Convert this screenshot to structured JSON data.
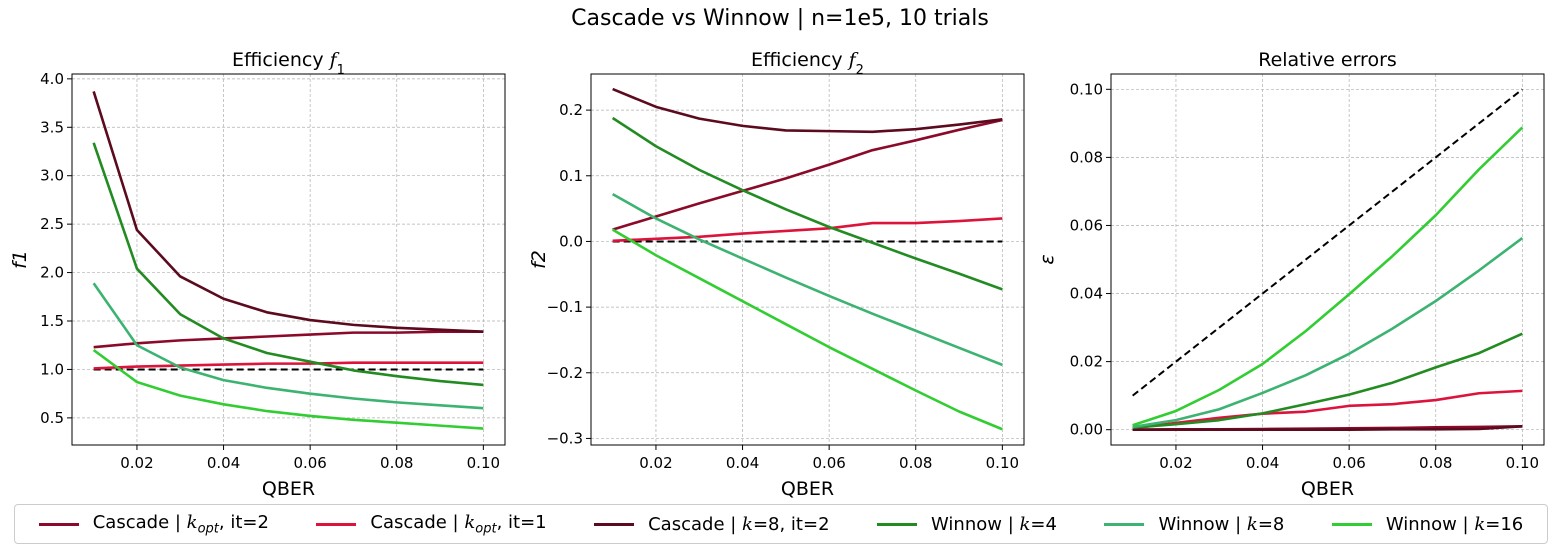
{
  "figure": {
    "title": "Cascade vs Winnow | n=1e5, 10 trials"
  },
  "colors": {
    "cascade_kopt_it2": "#8b0a2a",
    "cascade_kopt_it1": "#dc143c",
    "cascade_k8_it2": "#5c0a1e",
    "winnow_k4": "#228b22",
    "winnow_k8": "#3cb371",
    "winnow_k16": "#32cd32",
    "reference": "#000000",
    "grid": "#b0b0b0"
  },
  "legend": [
    {
      "key": "cascade_kopt_it2",
      "prefix": "Cascade | ",
      "k": "k",
      "sub": "opt",
      "suffix": ", it=2"
    },
    {
      "key": "cascade_kopt_it1",
      "prefix": "Cascade | ",
      "k": "k",
      "sub": "opt",
      "suffix": ", it=1"
    },
    {
      "key": "cascade_k8_it2",
      "prefix": "Cascade | ",
      "k": "k",
      "sub": "",
      "suffix": "=8, it=2"
    },
    {
      "key": "winnow_k4",
      "prefix": "Winnow | ",
      "k": "k",
      "sub": "",
      "suffix": "=4"
    },
    {
      "key": "winnow_k8",
      "prefix": "Winnow | ",
      "k": "k",
      "sub": "",
      "suffix": "=8"
    },
    {
      "key": "winnow_k16",
      "prefix": "Winnow | ",
      "k": "k",
      "sub": "",
      "suffix": "=16"
    }
  ],
  "chart_data": [
    {
      "type": "line",
      "title": "Efficiency f",
      "title_sub": "1",
      "xlabel": "QBER",
      "ylabel": "f1",
      "xlim": [
        0.005,
        0.105
      ],
      "ylim": [
        0.22,
        4.05
      ],
      "xticks": [
        0.02,
        0.04,
        0.06,
        0.08,
        0.1
      ],
      "xtick_labels": [
        "0.02",
        "0.04",
        "0.06",
        "0.08",
        "0.10"
      ],
      "yticks": [
        0.5,
        1.0,
        1.5,
        2.0,
        2.5,
        3.0,
        3.5,
        4.0
      ],
      "ytick_labels": [
        "0.5",
        "1.0",
        "1.5",
        "2.0",
        "2.5",
        "3.0",
        "3.5",
        "4.0"
      ],
      "grid": true,
      "x": [
        0.01,
        0.02,
        0.03,
        0.04,
        0.05,
        0.06,
        0.07,
        0.08,
        0.09,
        0.1
      ],
      "reference": {
        "x": [
          0.01,
          0.1
        ],
        "y": [
          1.0,
          1.0
        ]
      },
      "series": [
        {
          "key": "cascade_kopt_it2",
          "values": [
            1.23,
            1.27,
            1.3,
            1.32,
            1.34,
            1.36,
            1.38,
            1.38,
            1.39,
            1.39
          ]
        },
        {
          "key": "cascade_kopt_it1",
          "values": [
            1.01,
            1.03,
            1.04,
            1.05,
            1.06,
            1.06,
            1.07,
            1.07,
            1.07,
            1.07
          ]
        },
        {
          "key": "cascade_k8_it2",
          "values": [
            3.87,
            2.44,
            1.96,
            1.73,
            1.59,
            1.51,
            1.46,
            1.43,
            1.41,
            1.39
          ]
        },
        {
          "key": "winnow_k4",
          "values": [
            3.34,
            2.04,
            1.57,
            1.32,
            1.17,
            1.08,
            0.99,
            0.93,
            0.88,
            0.84
          ]
        },
        {
          "key": "winnow_k8",
          "values": [
            1.89,
            1.25,
            1.02,
            0.89,
            0.81,
            0.75,
            0.7,
            0.66,
            0.63,
            0.6
          ]
        },
        {
          "key": "winnow_k16",
          "values": [
            1.2,
            0.87,
            0.73,
            0.64,
            0.57,
            0.52,
            0.48,
            0.45,
            0.42,
            0.39
          ]
        }
      ]
    },
    {
      "type": "line",
      "title": "Efficiency f",
      "title_sub": "2",
      "xlabel": "QBER",
      "ylabel": "f2",
      "xlim": [
        0.005,
        0.105
      ],
      "ylim": [
        -0.31,
        0.255
      ],
      "xticks": [
        0.02,
        0.04,
        0.06,
        0.08,
        0.1
      ],
      "xtick_labels": [
        "0.02",
        "0.04",
        "0.06",
        "0.08",
        "0.10"
      ],
      "yticks": [
        -0.3,
        -0.2,
        -0.1,
        0.0,
        0.1,
        0.2
      ],
      "ytick_labels": [
        "−0.3",
        "−0.2",
        "−0.1",
        "0.0",
        "0.1",
        "0.2"
      ],
      "grid": true,
      "x": [
        0.01,
        0.02,
        0.03,
        0.04,
        0.05,
        0.06,
        0.07,
        0.08,
        0.09,
        0.1
      ],
      "reference": {
        "x": [
          0.01,
          0.1
        ],
        "y": [
          0.0,
          0.0
        ]
      },
      "series": [
        {
          "key": "cascade_kopt_it2",
          "values": [
            0.018,
            0.038,
            0.058,
            0.077,
            0.096,
            0.117,
            0.139,
            0.154,
            0.17,
            0.185
          ]
        },
        {
          "key": "cascade_kopt_it1",
          "values": [
            0.001,
            0.004,
            0.007,
            0.012,
            0.016,
            0.02,
            0.028,
            0.028,
            0.031,
            0.035
          ]
        },
        {
          "key": "cascade_k8_it2",
          "values": [
            0.232,
            0.205,
            0.187,
            0.176,
            0.169,
            0.168,
            0.167,
            0.171,
            0.178,
            0.186
          ]
        },
        {
          "key": "winnow_k4",
          "values": [
            0.188,
            0.145,
            0.109,
            0.078,
            0.049,
            0.022,
            -0.002,
            -0.026,
            -0.049,
            -0.073
          ]
        },
        {
          "key": "winnow_k8",
          "values": [
            0.072,
            0.035,
            0.003,
            -0.026,
            -0.055,
            -0.083,
            -0.11,
            -0.136,
            -0.162,
            -0.188
          ]
        },
        {
          "key": "winnow_k16",
          "values": [
            0.018,
            -0.021,
            -0.056,
            -0.091,
            -0.126,
            -0.161,
            -0.194,
            -0.227,
            -0.259,
            -0.286
          ]
        }
      ]
    },
    {
      "type": "line",
      "title": "Relative errors",
      "xlabel": "QBER",
      "ylabel": "ε",
      "xlim": [
        0.005,
        0.105
      ],
      "ylim": [
        -0.0045,
        0.1045
      ],
      "xticks": [
        0.02,
        0.04,
        0.06,
        0.08,
        0.1
      ],
      "xtick_labels": [
        "0.02",
        "0.04",
        "0.06",
        "0.08",
        "0.10"
      ],
      "yticks": [
        0.0,
        0.02,
        0.04,
        0.06,
        0.08,
        0.1
      ],
      "ytick_labels": [
        "0.00",
        "0.02",
        "0.04",
        "0.06",
        "0.08",
        "0.10"
      ],
      "grid": true,
      "x": [
        0.01,
        0.02,
        0.03,
        0.04,
        0.05,
        0.06,
        0.07,
        0.08,
        0.09,
        0.1
      ],
      "reference": {
        "x": [
          0.01,
          0.1
        ],
        "y": [
          0.01,
          0.1
        ]
      },
      "series": [
        {
          "key": "cascade_kopt_it2",
          "values": [
            0.0,
            0.0001,
            0.0001,
            0.0002,
            0.0003,
            0.0004,
            0.0005,
            0.0007,
            0.0008,
            0.001
          ]
        },
        {
          "key": "cascade_kopt_it1",
          "values": [
            0.0004,
            0.002,
            0.0035,
            0.0047,
            0.0053,
            0.007,
            0.0075,
            0.0087,
            0.0107,
            0.0114
          ]
        },
        {
          "key": "cascade_k8_it2",
          "values": [
            0.0,
            0.0,
            0.0,
            0.0,
            0.0,
            0.0,
            0.0001,
            0.0001,
            0.0002,
            0.001
          ]
        },
        {
          "key": "winnow_k4",
          "values": [
            0.0006,
            0.0016,
            0.0028,
            0.0048,
            0.0075,
            0.0103,
            0.0138,
            0.0183,
            0.0225,
            0.0282
          ]
        },
        {
          "key": "winnow_k8",
          "values": [
            0.0008,
            0.0028,
            0.006,
            0.0108,
            0.016,
            0.0223,
            0.0297,
            0.0378,
            0.0468,
            0.0563
          ]
        },
        {
          "key": "winnow_k16",
          "values": [
            0.0013,
            0.0055,
            0.0117,
            0.0193,
            0.029,
            0.0398,
            0.051,
            0.063,
            0.0765,
            0.0888
          ]
        }
      ]
    }
  ]
}
